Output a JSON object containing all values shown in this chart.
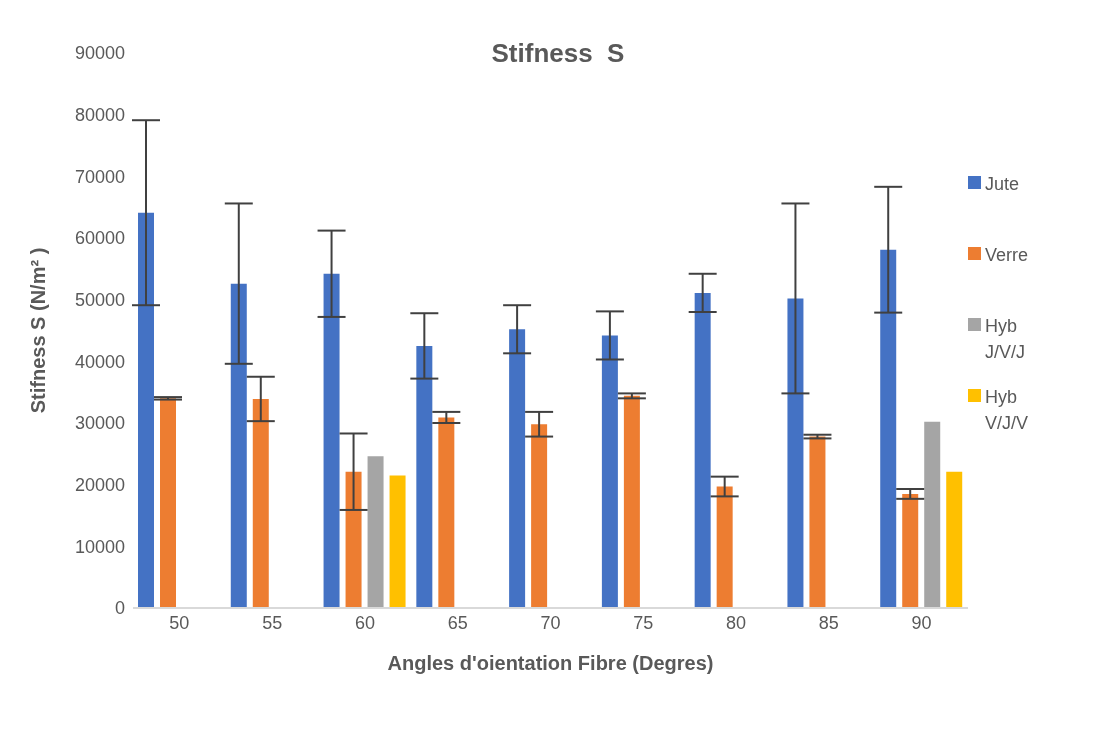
{
  "chart_data": {
    "type": "bar",
    "title": "Stifness  S",
    "xlabel": "Angles d'oientation Fibre (Degres)",
    "ylabel": "Stifness S (N/m² )",
    "categories": [
      "50",
      "55",
      "60",
      "65",
      "70",
      "75",
      "80",
      "85",
      "90"
    ],
    "series": [
      {
        "name": "Jute",
        "color": "#4472c4",
        "values": [
          64100,
          52600,
          54200,
          42500,
          45200,
          44200,
          51100,
          50200,
          58100
        ],
        "errors": [
          15000,
          13000,
          7000,
          5300,
          3900,
          3900,
          3100,
          15400,
          10200
        ]
      },
      {
        "name": "Verre",
        "color": "#ed7d31",
        "values": [
          34000,
          33900,
          22100,
          30900,
          29800,
          34400,
          19700,
          27800,
          18500
        ],
        "errors": [
          200,
          3600,
          6200,
          900,
          2000,
          400,
          1600,
          300,
          800
        ]
      },
      {
        "name": "Hyb J/V/J",
        "color": "#a5a5a5",
        "values": [
          null,
          null,
          24600,
          null,
          null,
          null,
          null,
          null,
          30200
        ]
      },
      {
        "name": "Hyb V/J/V",
        "color": "#ffc000",
        "values": [
          null,
          null,
          21500,
          null,
          null,
          null,
          null,
          null,
          22100
        ]
      }
    ],
    "ylim": [
      0,
      90000
    ],
    "yticks": [
      0,
      10000,
      20000,
      30000,
      40000,
      50000,
      60000,
      70000,
      80000,
      90000
    ],
    "grid": false,
    "legend": "right"
  }
}
